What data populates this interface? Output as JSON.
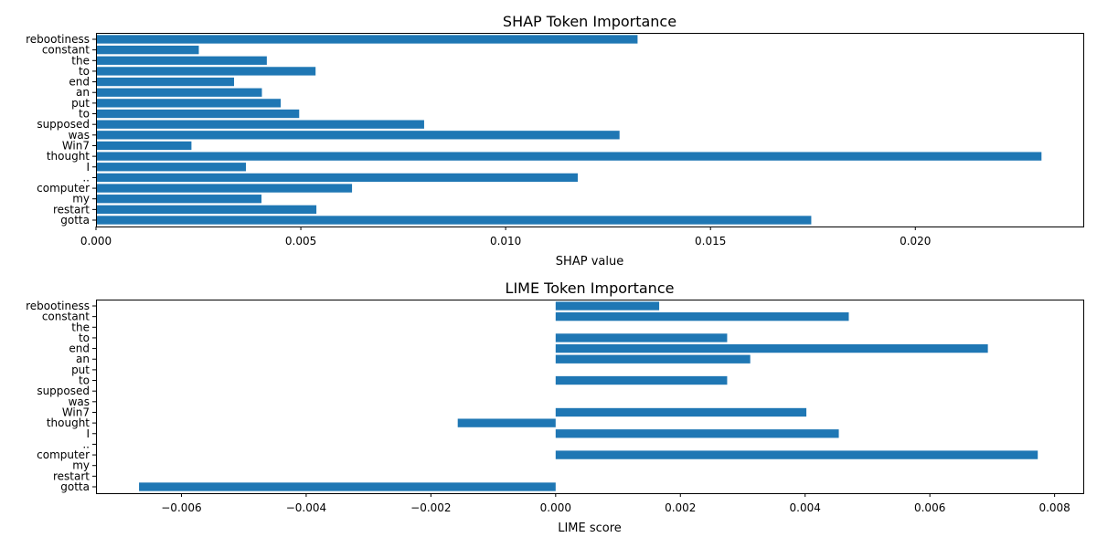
{
  "chart_data": [
    {
      "type": "bar",
      "orientation": "horizontal",
      "title": "SHAP Token Importance",
      "xlabel": "SHAP value",
      "ylabel": "",
      "xlim": [
        0,
        0.0241
      ],
      "xticks": [
        0.0,
        0.005,
        0.01,
        0.015,
        0.02
      ],
      "xtick_labels": [
        "0.000",
        "0.005",
        "0.010",
        "0.015",
        "0.020"
      ],
      "categories": [
        "rebootiness",
        "constant",
        "the",
        "to",
        "end",
        "an",
        "put",
        "to",
        "supposed",
        "was",
        "Win7",
        "thought",
        "I",
        "..",
        "computer",
        "my",
        "restart",
        "gotta"
      ],
      "values": [
        0.01322,
        0.00251,
        0.00417,
        0.00536,
        0.00337,
        0.00405,
        0.00451,
        0.00496,
        0.00801,
        0.01278,
        0.00233,
        0.02308,
        0.00366,
        0.01176,
        0.00625,
        0.00404,
        0.00538,
        0.01746
      ],
      "grid": false,
      "color": "#1f77b4"
    },
    {
      "type": "bar",
      "orientation": "horizontal",
      "title": "LIME Token Importance",
      "xlabel": "LIME score",
      "ylabel": "",
      "xlim": [
        -0.00737,
        0.00846
      ],
      "xticks": [
        -0.006,
        -0.004,
        -0.002,
        0.0,
        0.002,
        0.004,
        0.006,
        0.008
      ],
      "xtick_labels": [
        "−0.006",
        "−0.004",
        "−0.002",
        "0.000",
        "0.002",
        "0.004",
        "0.006",
        "0.008"
      ],
      "categories": [
        "rebootiness",
        "constant",
        "the",
        "to",
        "end",
        "an",
        "put",
        "to",
        "supposed",
        "was",
        "Win7",
        "thought",
        "I",
        "..",
        "computer",
        "my",
        "restart",
        "gotta"
      ],
      "values": [
        0.00166,
        0.0047,
        0.0,
        0.00275,
        0.00693,
        0.00312,
        0.0,
        0.00275,
        0.0,
        0.0,
        0.00402,
        -0.00157,
        0.00454,
        0.0,
        0.00773,
        0.0,
        0.0,
        -0.00668
      ],
      "grid": false,
      "color": "#1f77b4"
    }
  ]
}
